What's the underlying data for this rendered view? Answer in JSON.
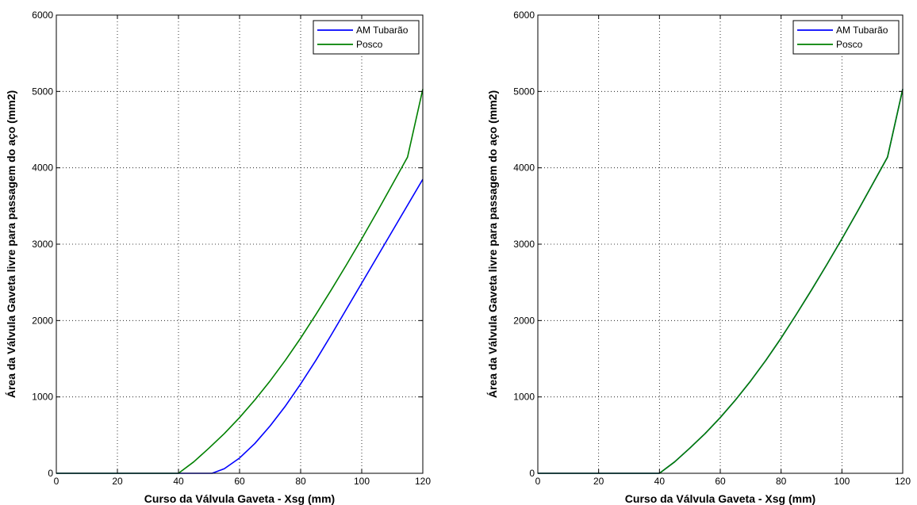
{
  "chart_data": [
    {
      "type": "line",
      "title": "",
      "xlabel": "Curso da Válvula Gaveta - Xsg (mm)",
      "ylabel": "Área da Válvula Gaveta livre para passagem do aço (mm2)",
      "xlim": [
        0,
        120
      ],
      "ylim": [
        0,
        6000
      ],
      "xticks": [
        0,
        20,
        40,
        60,
        80,
        100,
        120
      ],
      "yticks": [
        0,
        1000,
        2000,
        3000,
        4000,
        5000,
        6000
      ],
      "grid": true,
      "legend_position": "top-right",
      "series": [
        {
          "name": "AM Tubarão",
          "color": "#0000ff",
          "x": [
            0,
            51,
            55,
            60,
            65,
            70,
            75,
            80,
            85,
            90,
            95,
            100,
            105,
            110,
            115,
            120
          ],
          "y": [
            0,
            0,
            60,
            200,
            390,
            620,
            880,
            1170,
            1480,
            1810,
            2150,
            2490,
            2830,
            3170,
            3510,
            3850
          ]
        },
        {
          "name": "Posco",
          "color": "#008000",
          "x": [
            0,
            40,
            45,
            50,
            55,
            60,
            65,
            70,
            75,
            80,
            85,
            90,
            95,
            100,
            105,
            110,
            115,
            120
          ],
          "y": [
            0,
            0,
            150,
            330,
            520,
            730,
            960,
            1210,
            1480,
            1770,
            2080,
            2400,
            2730,
            3070,
            3420,
            3780,
            4140,
            5030
          ]
        }
      ]
    },
    {
      "type": "line",
      "title": "",
      "xlabel": "Curso da Válvula Gaveta - Xsg (mm)",
      "ylabel": "Área da Válvula Gaveta livre para passagem do aço (mm2)",
      "xlim": [
        0,
        120
      ],
      "ylim": [
        0,
        6000
      ],
      "xticks": [
        0,
        20,
        40,
        60,
        80,
        100,
        120
      ],
      "yticks": [
        0,
        1000,
        2000,
        3000,
        4000,
        5000,
        6000
      ],
      "grid": true,
      "legend_position": "top-right",
      "series": [
        {
          "name": "AM Tubarão",
          "color": "#0000ff",
          "x": [
            0,
            40,
            45,
            50,
            55,
            60,
            65,
            70,
            75,
            80,
            85,
            90,
            95,
            100,
            105,
            110,
            115,
            120
          ],
          "y": [
            0,
            0,
            150,
            330,
            520,
            730,
            960,
            1210,
            1480,
            1770,
            2080,
            2400,
            2730,
            3070,
            3420,
            3780,
            4140,
            5030
          ]
        },
        {
          "name": "Posco",
          "color": "#008000",
          "x": [
            0,
            40,
            45,
            50,
            55,
            60,
            65,
            70,
            75,
            80,
            85,
            90,
            95,
            100,
            105,
            110,
            115,
            120
          ],
          "y": [
            0,
            0,
            150,
            330,
            520,
            730,
            960,
            1210,
            1480,
            1770,
            2080,
            2400,
            2730,
            3070,
            3420,
            3780,
            4140,
            5030
          ]
        }
      ]
    }
  ]
}
